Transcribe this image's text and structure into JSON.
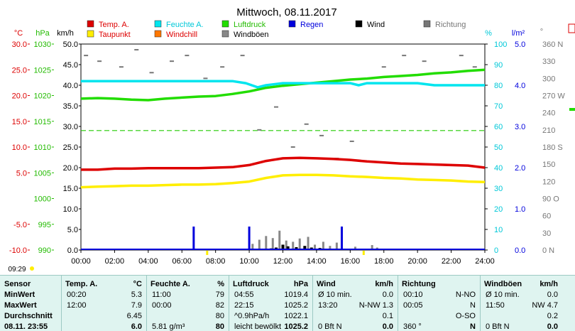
{
  "page": {
    "title": "Mittwoch, 08.11.2017",
    "current_time": "09:29"
  },
  "axis_headers": {
    "temp": "°C",
    "pressure": "hPa",
    "wind": "km/h",
    "humidity": "%",
    "rain": "l/m²",
    "direction": "°"
  },
  "legend": [
    {
      "label": "Temp. A.",
      "color": "#dd0000",
      "text_color": "#dd0000"
    },
    {
      "label": "Taupunkt",
      "color": "#ffee00",
      "text_color": "#dd0000"
    },
    {
      "label": "Feuchte A.",
      "color": "#00e5ee",
      "text_color": "#00c8d8"
    },
    {
      "label": "Windchill",
      "color": "#ff7700",
      "text_color": "#dd0000"
    },
    {
      "label": "Luftdruck",
      "color": "#22dd00",
      "text_color": "#22bb00"
    },
    {
      "label": "Windböen",
      "color": "#888888",
      "text_color": "#000000"
    },
    {
      "label": "Regen",
      "color": "#0000dd",
      "text_color": "#0000dd"
    },
    {
      "label": "Wind",
      "color": "#000000",
      "text_color": "#000000"
    },
    {
      "label": "Richtung",
      "color": "#777777",
      "text_color": "#777777"
    }
  ],
  "chart_data": {
    "type": "line",
    "title": "Mittwoch, 08.11.2017",
    "x_ticks": [
      "00:00",
      "02:00",
      "04:00",
      "06:00",
      "08:00",
      "10:00",
      "12:00",
      "14:00",
      "16:00",
      "18:00",
      "20:00",
      "22:00",
      "24:00"
    ],
    "xlim": [
      0,
      24
    ],
    "axes": {
      "temp": {
        "label": "°C",
        "ylim": [
          -10,
          30
        ],
        "ticks": [
          "30.0",
          "25.0",
          "20.0",
          "15.0",
          "10.0",
          "5.0",
          "-5.0",
          "-10.0"
        ],
        "color": "#dd0000"
      },
      "pressure": {
        "label": "hPa",
        "ylim": [
          990,
          1030
        ],
        "ticks": [
          "1030",
          "1025",
          "1020",
          "1015",
          "1010",
          "1005",
          "1000",
          "995",
          "990"
        ],
        "color": "#22bb00"
      },
      "wind": {
        "label": "km/h",
        "ylim": [
          0,
          50
        ],
        "ticks": [
          "50.0",
          "45.0",
          "40.0",
          "35.0",
          "30.0",
          "25.0",
          "20.0",
          "15.0",
          "10.0",
          "5.0",
          "0.0"
        ],
        "color": "#000000"
      },
      "humidity": {
        "label": "%",
        "ylim": [
          0,
          100
        ],
        "ticks": [
          "100",
          "90",
          "80",
          "70",
          "60",
          "50",
          "40",
          "30",
          "20",
          "10",
          "0"
        ],
        "color": "#00c8d8"
      },
      "rain": {
        "label": "l/m²",
        "ylim": [
          0,
          5
        ],
        "ticks": [
          "5.0",
          "4.0",
          "3.0",
          "2.0",
          "1.0",
          "0.0"
        ],
        "color": "#0000dd"
      },
      "direction": {
        "label": "°",
        "ylim": [
          0,
          360
        ],
        "ticks": [
          "360 N",
          "330",
          "300",
          "270 W",
          "240",
          "210",
          "180 S",
          "150",
          "120",
          "90 O",
          "60",
          "30",
          "0 N"
        ],
        "color": "#777777"
      }
    },
    "reference_line": {
      "axis": "humidity",
      "value": 58,
      "color": "#22cc00"
    },
    "series": [
      {
        "name": "Luftdruck",
        "axis": "pressure",
        "color": "#22dd00",
        "x": [
          0,
          1,
          2,
          3,
          4,
          5,
          6,
          7,
          8,
          9,
          10,
          11,
          12,
          13,
          14,
          15,
          16,
          17,
          18,
          19,
          20,
          21,
          22,
          23,
          24
        ],
        "y": [
          1019.4,
          1019.5,
          1019.4,
          1019.2,
          1019.1,
          1019.4,
          1019.6,
          1019.8,
          1019.9,
          1020.3,
          1020.8,
          1021.5,
          1021.9,
          1022.2,
          1022.5,
          1022.8,
          1023.1,
          1023.3,
          1023.6,
          1023.8,
          1024.0,
          1024.3,
          1024.5,
          1024.8,
          1025.0
        ]
      },
      {
        "name": "Feuchte A.",
        "axis": "humidity",
        "color": "#00e5ee",
        "x": [
          0,
          1,
          2,
          3,
          4,
          5,
          6,
          7,
          8,
          9,
          9.8,
          10.5,
          11,
          12,
          13,
          14,
          15,
          16,
          16.5,
          17,
          18,
          19,
          20,
          21,
          22,
          23,
          24
        ],
        "y": [
          82,
          82,
          82,
          82,
          82,
          82,
          82,
          82,
          82,
          82,
          81,
          79,
          80,
          81,
          81,
          81,
          81,
          81,
          80,
          81,
          81,
          81,
          81,
          80,
          80,
          80,
          80
        ]
      },
      {
        "name": "Temp. A.",
        "axis": "temp",
        "color": "#dd0000",
        "x": [
          0,
          1,
          2,
          3,
          4,
          5,
          6,
          7,
          8,
          9,
          10,
          11,
          12,
          13,
          14,
          15,
          16,
          17,
          18,
          19,
          20,
          21,
          22,
          23,
          24
        ],
        "y": [
          5.6,
          5.6,
          5.8,
          5.8,
          5.9,
          5.9,
          5.9,
          5.9,
          6.0,
          6.1,
          6.5,
          7.3,
          7.8,
          7.9,
          7.8,
          7.7,
          7.5,
          7.2,
          7.0,
          6.8,
          6.7,
          6.6,
          6.5,
          6.4,
          6.0
        ]
      },
      {
        "name": "Taupunkt",
        "axis": "temp",
        "color": "#ffee00",
        "x": [
          0,
          1,
          2,
          3,
          4,
          5,
          6,
          7,
          8,
          9,
          10,
          11,
          12,
          13,
          14,
          15,
          16,
          17,
          18,
          19,
          20,
          21,
          22,
          23,
          24
        ],
        "y": [
          2.2,
          2.3,
          2.4,
          2.5,
          2.5,
          2.6,
          2.7,
          2.7,
          2.8,
          3.0,
          3.3,
          4.0,
          4.5,
          4.6,
          4.6,
          4.5,
          4.3,
          4.2,
          4.0,
          3.9,
          3.7,
          3.6,
          3.5,
          3.3,
          3.2
        ]
      }
    ],
    "rain_bars": {
      "axis": "rain",
      "color": "#0000dd",
      "x": [
        6.7,
        10.0,
        15.5
      ],
      "values": [
        0.57,
        0.57,
        0.57
      ]
    },
    "wind_bars": {
      "axis": "wind",
      "color": "#000000",
      "x": [
        11.3,
        11.6,
        12.0,
        12.3,
        12.8,
        13.3,
        13.7,
        14.2,
        14.9
      ],
      "values": [
        0.4,
        0.6,
        1.3,
        0.9,
        0.7,
        1.0,
        0.6,
        0.5,
        0.3
      ]
    },
    "gust_bars": {
      "axis": "wind",
      "color": "#888888",
      "x": [
        10.2,
        10.6,
        11.0,
        11.4,
        11.8,
        12.2,
        12.6,
        13.0,
        13.5,
        13.9,
        14.4,
        14.8,
        15.2,
        16.3,
        17.3,
        17.6
      ],
      "values": [
        1.5,
        2.5,
        3.4,
        2.9,
        4.7,
        2.3,
        2.0,
        2.8,
        3.2,
        1.3,
        2.0,
        1.0,
        1.8,
        0.8,
        1.2,
        0.6
      ]
    },
    "direction_points": {
      "axis": "direction",
      "color": "#777777",
      "x": [
        0.3,
        1.1,
        2.4,
        3.3,
        4.2,
        5.4,
        6.3,
        7.4,
        8.4,
        9.6,
        10.6,
        11.6,
        12.6,
        13.4,
        14.3,
        15.2,
        16.1,
        17.0,
        18.0,
        19.2,
        20.4,
        21.6,
        22.6,
        23.4
      ],
      "y": [
        340,
        330,
        320,
        350,
        310,
        330,
        340,
        300,
        320,
        340,
        210,
        250,
        180,
        220,
        200,
        160,
        190,
        300,
        320,
        340,
        330,
        310,
        340,
        320
      ]
    },
    "day_markers": [
      {
        "x": 7.5,
        "color": "#ffee00"
      },
      {
        "x": 16.8,
        "color": "#ffee00"
      }
    ]
  },
  "table": {
    "row_labels": [
      "Sensor",
      "MinWert",
      "MaxWert",
      "Durchschnitt",
      "08.11. 23:55"
    ],
    "columns": [
      {
        "header": "Temp. A.",
        "unit": "°C",
        "time": [
          "00:20",
          "12:00",
          "",
          ""
        ],
        "value": [
          "5.3",
          "7.9",
          "6.45",
          "6.0"
        ]
      },
      {
        "header": "Feuchte A.",
        "unit": "%",
        "time": [
          "11:00",
          "00:00",
          "",
          "5.81 g/m³"
        ],
        "value": [
          "79",
          "82",
          "80",
          "80"
        ]
      },
      {
        "header": "Luftdruck",
        "unit": "hPa",
        "time": [
          "04:55",
          "22:15",
          "^0.9hPa/h",
          "leicht bewölkt"
        ],
        "value": [
          "1019.4",
          "1025.2",
          "1022.1",
          "1025.2"
        ]
      },
      {
        "header": "Wind",
        "unit": "km/h",
        "time": [
          "Ø 10 min.",
          "13:20",
          "",
          "0 Bft N"
        ],
        "mid": [
          "",
          "N-NW 1.3",
          "",
          ""
        ],
        "value": [
          "0.0",
          "",
          "0.1",
          "0.0"
        ]
      },
      {
        "header": "Richtung",
        "unit": "",
        "time": [
          "00:10",
          "00:05",
          "",
          "360 °"
        ],
        "value": [
          "N-NO",
          "N",
          "O-SO",
          "N"
        ]
      },
      {
        "header": "Windböen",
        "unit": "km/h",
        "time": [
          "Ø 10 min.",
          "11:50",
          "",
          "0 Bft N"
        ],
        "value": [
          "0.0",
          "NW 4.7",
          "0.2",
          "0.0"
        ]
      }
    ]
  }
}
